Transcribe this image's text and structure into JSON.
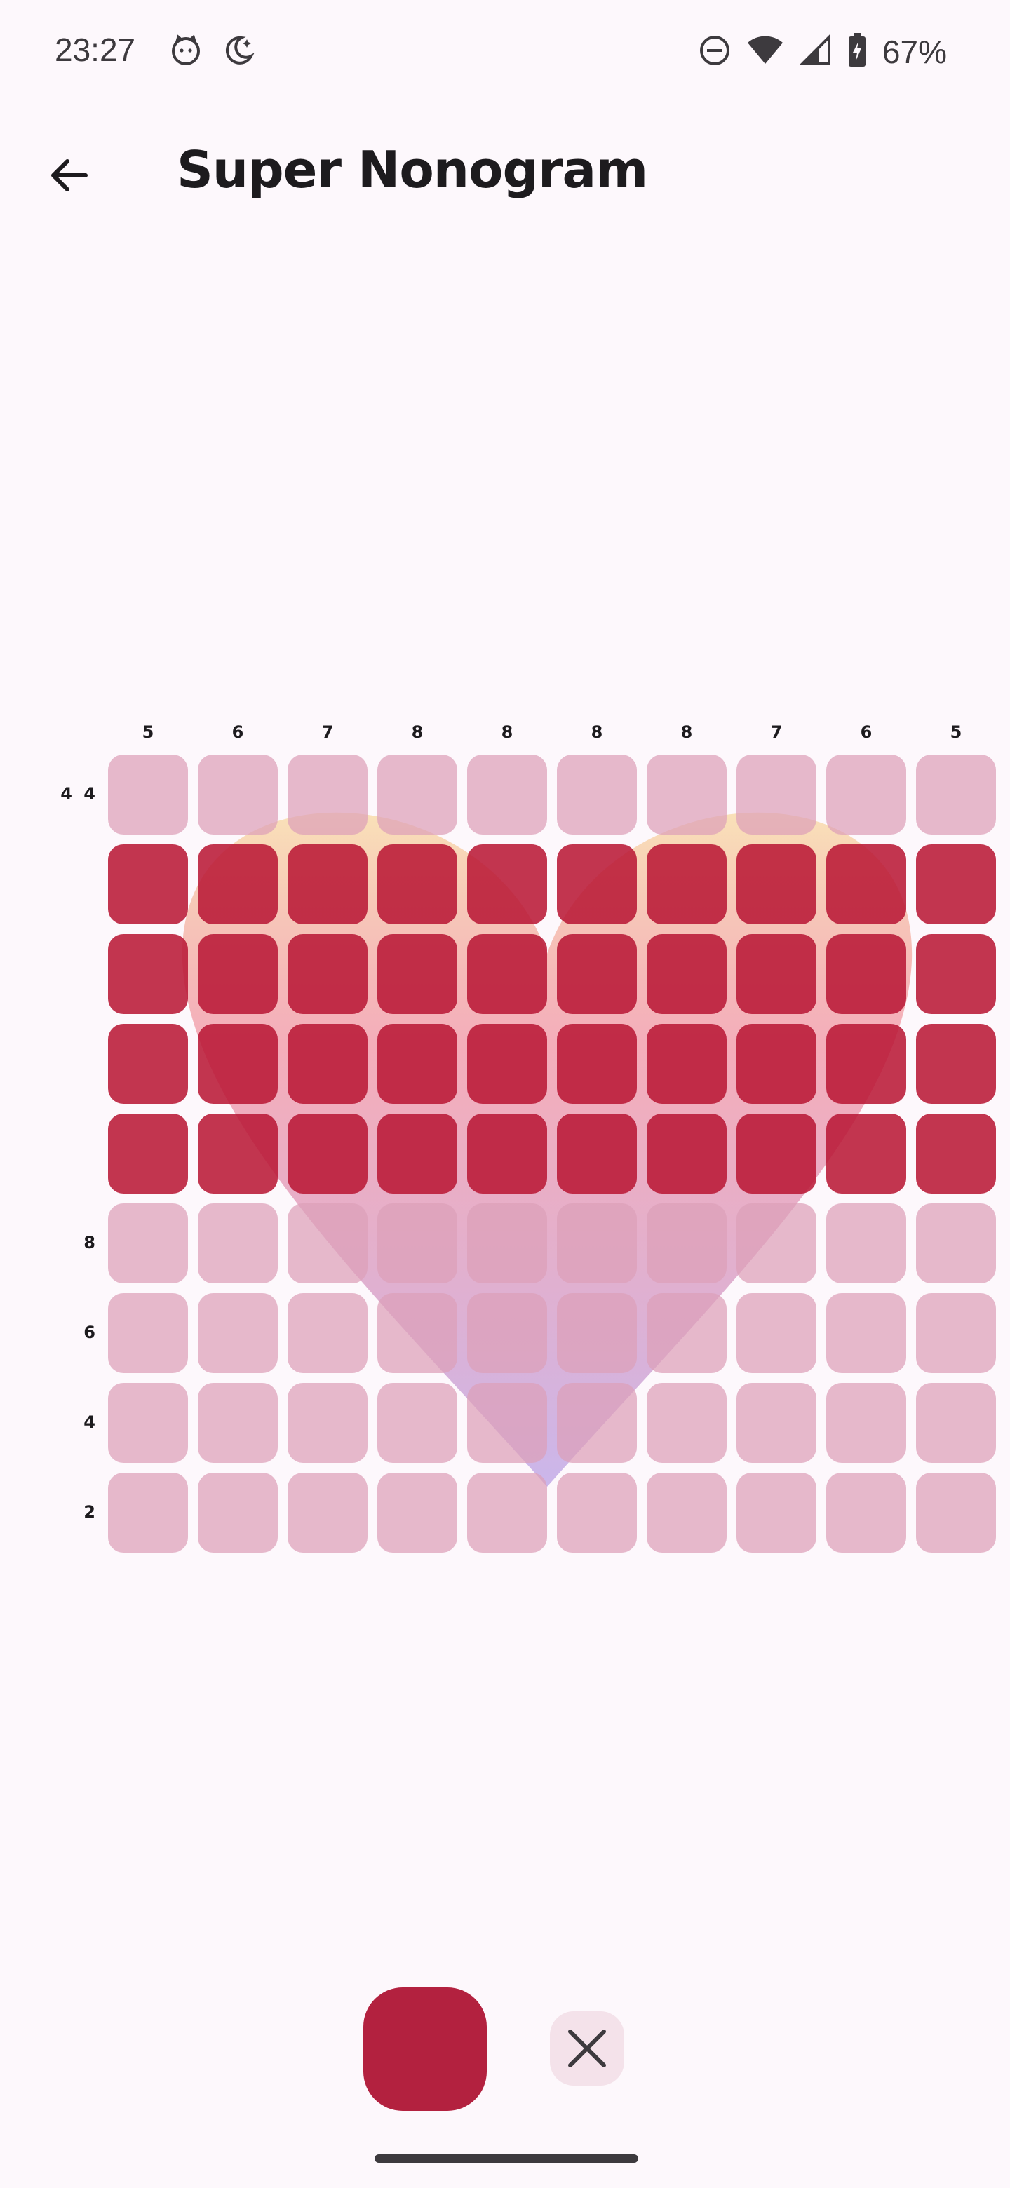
{
  "status_bar": {
    "time": "23:27",
    "battery": "67%",
    "icons": [
      "cat-face-icon",
      "night-mode-icon",
      "do-not-disturb-icon",
      "wifi-icon",
      "signal-icon",
      "battery-charging-icon"
    ]
  },
  "app_bar": {
    "title": "Super Nonogram",
    "back_icon": "arrow-left-icon"
  },
  "puzzle": {
    "rows": 9,
    "cols": 10,
    "column_clues": [
      "5",
      "6",
      "7",
      "8",
      "8",
      "8",
      "8",
      "7",
      "6",
      "5"
    ],
    "row_clues": [
      "4 4",
      "",
      "",
      "",
      "",
      "8",
      "6",
      "4",
      "2"
    ],
    "filled_rows": [
      1,
      2,
      3,
      4
    ],
    "colors": {
      "filled": "#b9193a",
      "empty": "#dca0b9",
      "accent": "#b3213f"
    }
  },
  "toolbar": {
    "fill_tool": "fill-square-tool",
    "cross_tool": "close-icon"
  }
}
